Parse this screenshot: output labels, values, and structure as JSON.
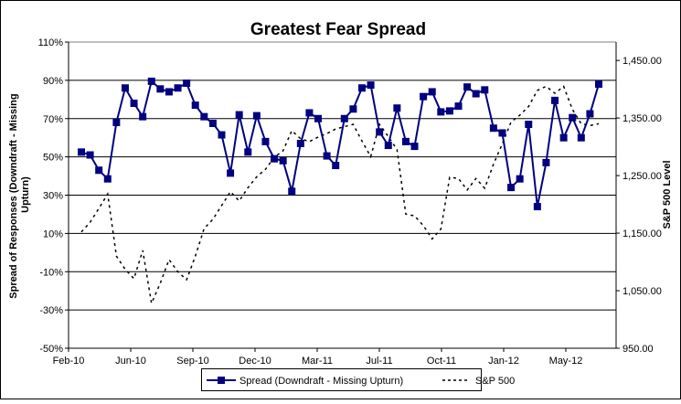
{
  "chart_data": {
    "type": "line",
    "title": "Greatest Fear Spread",
    "ylabel": "Spread of Responses (Downdraft - Missing Upturn)",
    "y2label": "S&P 500 Level",
    "xlabel": "",
    "x_tick_labels": [
      "Feb-10",
      "Jun-10",
      "Sep-10",
      "Dec-10",
      "Mar-11",
      "Jul-11",
      "Oct-11",
      "Jan-12",
      "May-12"
    ],
    "y_tick_labels": [
      "110%",
      "90%",
      "70%",
      "50%",
      "30%",
      "10%",
      "-10%",
      "-30%",
      "-50%"
    ],
    "y2_tick_labels": [
      "1,450.00",
      "1,350.00",
      "1,250.00",
      "1,150.00",
      "1,050.00",
      "950.00"
    ],
    "ylim": [
      -50,
      110
    ],
    "y2lim": [
      950,
      1482
    ],
    "grid": true,
    "legend_position": "bottom",
    "series": [
      {
        "name": "Spread (Downdraft - Missing Upturn)",
        "axis": "left",
        "color": "#000080",
        "marker": "square",
        "values": [
          52.5,
          51,
          43,
          38.5,
          68,
          86,
          78,
          71,
          89.5,
          85.5,
          84,
          86,
          88.5,
          77,
          71,
          67.5,
          61.5,
          41.5,
          72,
          52.5,
          71.5,
          58,
          49,
          48,
          32,
          57,
          73,
          70,
          50.5,
          45.5,
          70,
          75,
          86,
          87.5,
          63,
          56,
          75.5,
          58,
          55.5,
          81.5,
          84,
          73.5,
          74,
          76.5,
          86.5,
          83,
          85,
          65,
          62.5,
          34,
          38.5,
          67,
          24,
          47,
          79.5,
          60,
          70.5,
          60,
          72.5,
          88
        ]
      },
      {
        "name": "S&P 500",
        "axis": "right",
        "color": "#000000",
        "style": "dashed",
        "values": [
          1152,
          1169,
          1193,
          1218,
          1110,
          1087,
          1071,
          1120,
          1028,
          1063,
          1104,
          1083,
          1069,
          1110,
          1158,
          1174,
          1198,
          1222,
          1206,
          1229,
          1248,
          1261,
          1282,
          1293,
          1328,
          1314,
          1309,
          1317,
          1323,
          1331,
          1335,
          1339,
          1310,
          1283,
          1339,
          1318,
          1295,
          1183,
          1180,
          1163,
          1140,
          1157,
          1247,
          1245,
          1225,
          1245,
          1228,
          1270,
          1305,
          1343,
          1355,
          1370,
          1398,
          1405,
          1393,
          1405,
          1365,
          1340,
          1337,
          1340
        ]
      }
    ]
  }
}
